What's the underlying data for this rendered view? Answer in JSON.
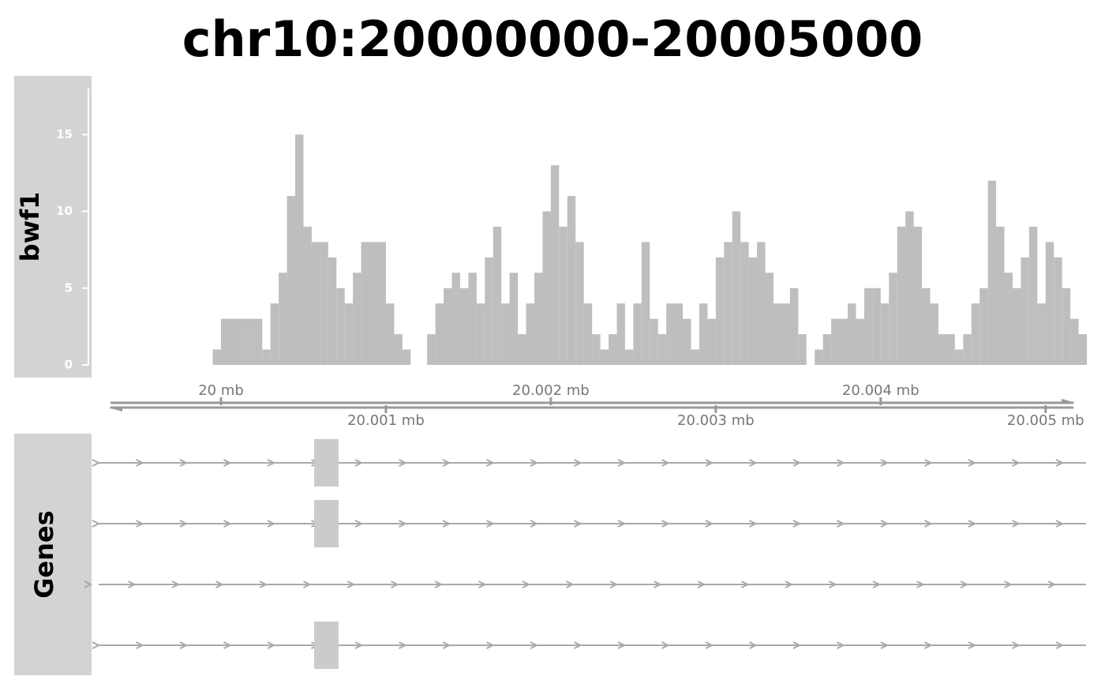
{
  "chart_data": [
    {
      "type": "histogram",
      "title": "chr10:20000000-20005000",
      "ylabel": "bwf1",
      "color": "#bebebe",
      "xlim": [
        19999320,
        20005250
      ],
      "ylim": [
        0,
        18
      ],
      "yticks": [
        0,
        5,
        10,
        15
      ],
      "xticks": [
        {
          "value": 20000000,
          "label": "20 mb"
        },
        {
          "value": 20001000,
          "label": "20.001 mb"
        },
        {
          "value": 20002000,
          "label": "20.002 mb"
        },
        {
          "value": 20003000,
          "label": "20.003 mb"
        },
        {
          "value": 20004000,
          "label": "20.004 mb"
        },
        {
          "value": 20005000,
          "label": "20.005 mb"
        }
      ],
      "bins": [
        19999950,
        20000000,
        20000050,
        20000100,
        20000150,
        20000200,
        20000250,
        20000300,
        20000350,
        20000400,
        20000450,
        20000500,
        20000550,
        20000600,
        20000650,
        20000700,
        20000750,
        20000800,
        20000850,
        20000900,
        20000950,
        20001000,
        20001050,
        20001100,
        20001150,
        20001200,
        20001250,
        20001300,
        20001350,
        20001400,
        20001450,
        20001500,
        20001550,
        20001600,
        20001650,
        20001700,
        20001750,
        20001800,
        20001850,
        20001900,
        20001950,
        20002000,
        20002050,
        20002100,
        20002150,
        20002200,
        20002250,
        20002300,
        20002350,
        20002400,
        20002450,
        20002500,
        20002550,
        20002600,
        20002650,
        20002700,
        20002750,
        20002800,
        20002850,
        20002900,
        20002950,
        20003000,
        20003050,
        20003100,
        20003150,
        20003200,
        20003250,
        20003300,
        20003350,
        20003400,
        20003450,
        20003500,
        20003550,
        20003600,
        20003650,
        20003700,
        20003750,
        20003800,
        20003850,
        20003900,
        20003950,
        20004000,
        20004050,
        20004100,
        20004150,
        20004200,
        20004250,
        20004300,
        20004350,
        20004400,
        20004450,
        20004500,
        20004550,
        20004600,
        20004650,
        20004700,
        20004750,
        20004800,
        20004850,
        20004900,
        20004950,
        20005000,
        20005050,
        20005100,
        20005150,
        20005200,
        20005250
      ],
      "values": [
        1,
        3,
        3,
        3,
        3,
        3,
        1,
        4,
        6,
        11,
        15,
        9,
        8,
        8,
        7,
        5,
        4,
        6,
        8,
        8,
        8,
        4,
        2,
        1,
        0,
        0,
        2,
        4,
        5,
        6,
        5,
        6,
        4,
        7,
        9,
        4,
        6,
        2,
        4,
        6,
        10,
        13,
        9,
        11,
        8,
        4,
        2,
        1,
        2,
        4,
        1,
        4,
        8,
        3,
        2,
        4,
        4,
        3,
        1,
        4,
        3,
        7,
        8,
        10,
        8,
        7,
        8,
        6,
        4,
        4,
        5,
        2,
        0,
        1,
        2,
        3,
        3,
        4,
        3,
        5,
        5,
        4,
        6,
        9,
        10,
        9,
        5,
        4,
        2,
        2,
        1,
        2,
        4,
        5,
        12,
        9,
        6,
        5,
        7,
        9,
        4,
        8,
        7,
        5,
        3,
        2
      ]
    },
    {
      "type": "gene_track",
      "ylabel": "Genes",
      "color": "#cbcbcb",
      "transcripts": [
        {
          "exons": [
            [
              20000565,
              20000713
            ]
          ]
        },
        {
          "exons": [
            [
              20000565,
              20000713
            ]
          ]
        },
        {
          "exons": []
        },
        {
          "exons": [
            [
              20000565,
              20000713
            ]
          ]
        }
      ]
    }
  ]
}
